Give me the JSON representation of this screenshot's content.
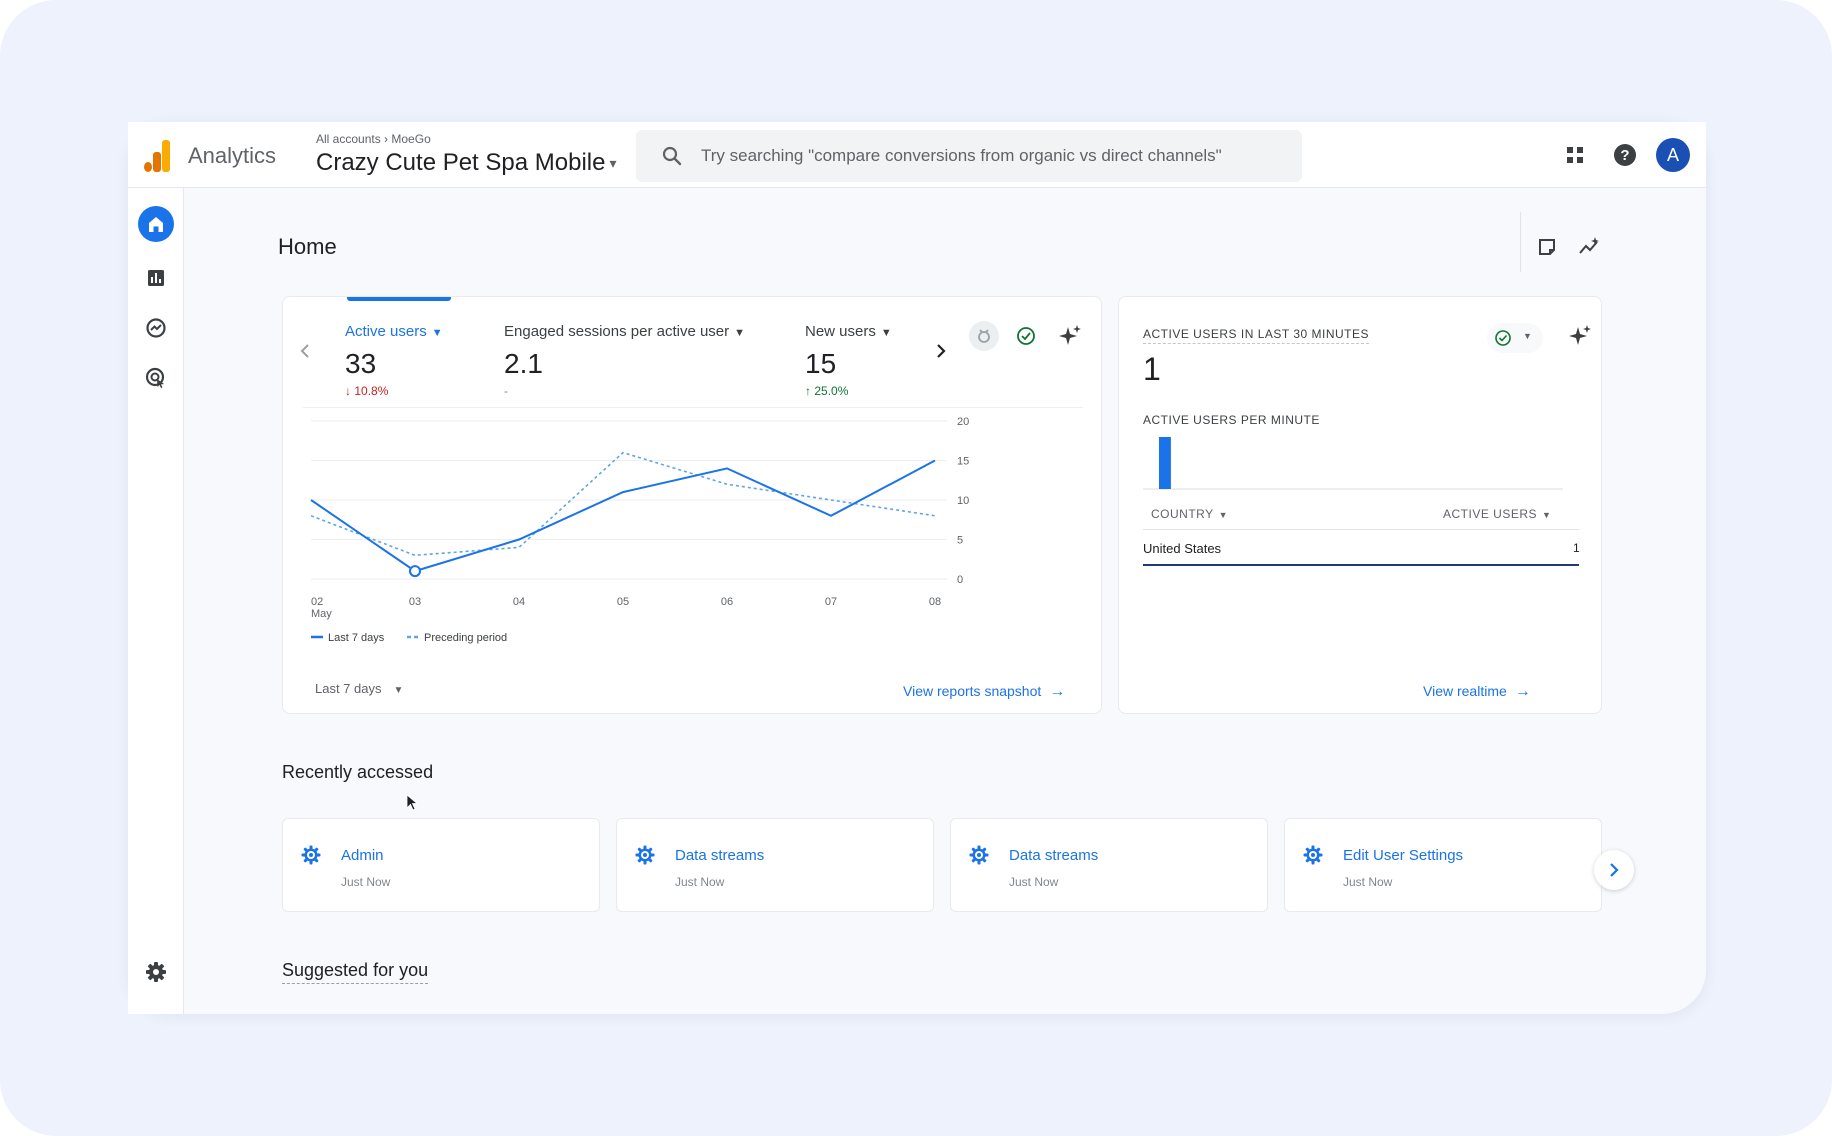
{
  "app": {
    "name": "Analytics",
    "breadcrumb": [
      "All accounts",
      "MoeGo"
    ],
    "property": "Crazy Cute Pet Spa Mobile",
    "search_placeholder": "Try searching \"compare conversions from organic vs direct channels\"",
    "avatar_initial": "A"
  },
  "colors": {
    "brand_blue": "#1a73e8",
    "logo_orange": "#e37400",
    "logo_yellow": "#f9ab00",
    "avatar": "#1a4fb4"
  },
  "icons": {
    "topbar": [
      "apps-grid-icon",
      "help-icon"
    ],
    "sidebar": [
      "home-icon",
      "reports-icon",
      "explore-icon",
      "advertising-icon",
      "settings-gear-icon"
    ]
  },
  "home": {
    "title": "Home",
    "metrics": [
      {
        "label": "Active users",
        "value": "33",
        "change": "10.8%",
        "direction": "down"
      },
      {
        "label": "Engaged sessions per active user",
        "value": "2.1",
        "change": "-",
        "direction": "flat"
      },
      {
        "label": "New users",
        "value": "15",
        "change": "25.0%",
        "direction": "up"
      }
    ],
    "period": "Last 7 days",
    "snapshot_link": "View reports snapshot"
  },
  "chart_data": {
    "type": "line",
    "x": [
      "02",
      "03",
      "04",
      "05",
      "06",
      "07",
      "08"
    ],
    "x_sublabel": "May",
    "ylim": [
      0,
      20
    ],
    "yticks": [
      0,
      5,
      10,
      15,
      20
    ],
    "y_axis_position": "right",
    "series": [
      {
        "name": "Last 7 days",
        "style": "solid",
        "color": "#1a73e8",
        "values": [
          10,
          1,
          5,
          11,
          14,
          8,
          15
        ]
      },
      {
        "name": "Preceding period",
        "style": "dashed",
        "color": "#5fa4e8",
        "values": [
          8,
          3,
          4,
          16,
          12,
          10,
          8
        ]
      }
    ],
    "highlight_point": {
      "x": "03",
      "series": "Last 7 days"
    },
    "legend": "bottom-left"
  },
  "realtime": {
    "title": "ACTIVE USERS IN LAST 30 MINUTES",
    "value": "1",
    "per_minute_label": "ACTIVE USERS PER MINUTE",
    "per_minute_values": [
      1,
      0,
      0,
      0,
      0,
      0,
      0,
      0,
      0,
      0,
      0,
      0,
      0,
      0,
      0,
      0,
      0,
      0,
      0,
      0,
      0,
      0,
      0,
      0,
      0,
      0,
      0,
      0,
      0,
      0
    ],
    "table_headers": [
      "COUNTRY",
      "ACTIVE USERS"
    ],
    "rows": [
      {
        "country": "United States",
        "users": "1"
      }
    ],
    "link": "View realtime"
  },
  "recently_accessed": {
    "title": "Recently accessed",
    "items": [
      {
        "label": "Admin",
        "time": "Just Now"
      },
      {
        "label": "Data streams",
        "time": "Just Now"
      },
      {
        "label": "Data streams",
        "time": "Just Now"
      },
      {
        "label": "Edit User Settings",
        "time": "Just Now"
      }
    ]
  },
  "suggested": {
    "title": "Suggested for you"
  }
}
